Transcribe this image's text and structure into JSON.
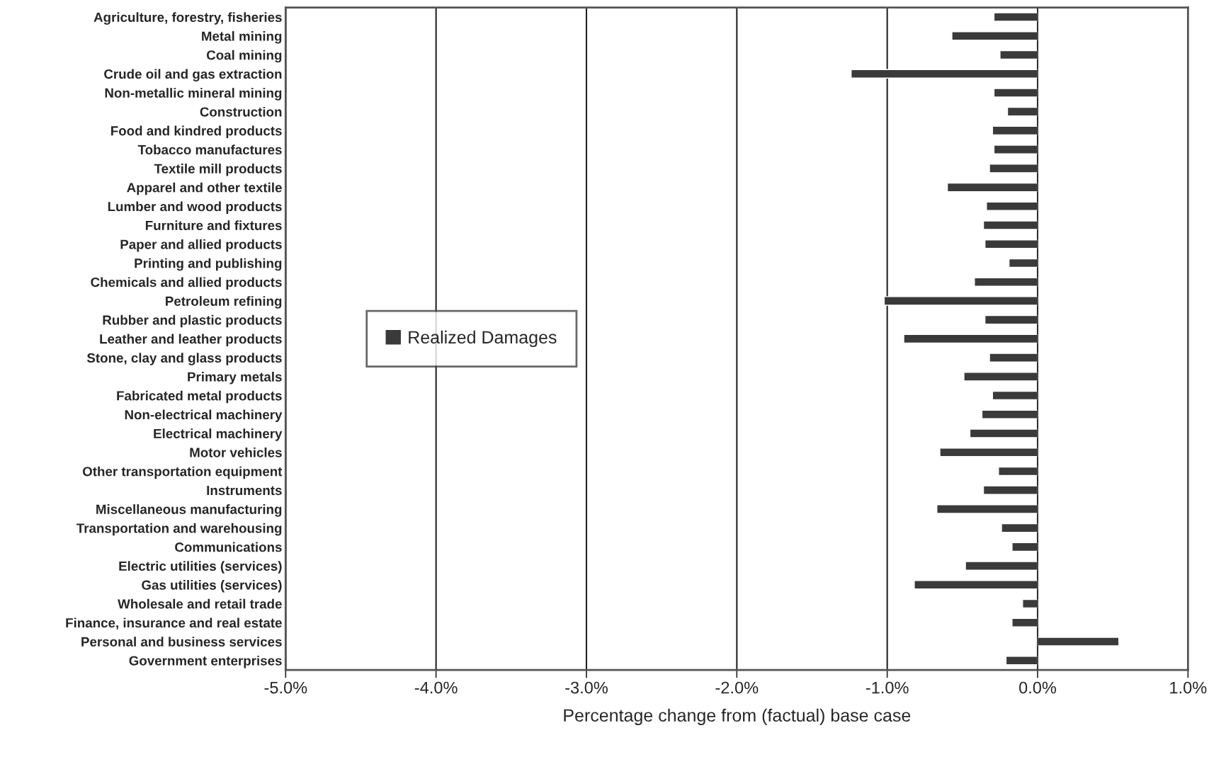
{
  "chart_data": {
    "type": "bar",
    "orientation": "horizontal",
    "xlabel": "Percentage change from (factual) base case",
    "categories": [
      "Agriculture, forestry, fisheries",
      "Metal mining",
      "Coal mining",
      "Crude oil and gas extraction",
      "Non-metallic mineral mining",
      "Construction",
      "Food and kindred products",
      "Tobacco manufactures",
      "Textile mill products",
      "Apparel and other textile",
      "Lumber and wood products",
      "Furniture and fixtures",
      "Paper and allied products",
      "Printing and publishing",
      "Chemicals and allied products",
      "Petroleum refining",
      "Rubber and plastic products",
      "Leather and leather products",
      "Stone, clay and glass products",
      "Primary metals",
      "Fabricated metal products",
      "Non-electrical machinery",
      "Electrical machinery",
      "Motor vehicles",
      "Other transportation equipment",
      "Instruments",
      "Miscellaneous manufacturing",
      "Transportation and warehousing",
      "Communications",
      "Electric utilities (services)",
      "Gas utilities (services)",
      "Wholesale and retail trade",
      "Finance, insurance and real estate",
      "Personal and business services",
      "Government enterprises"
    ],
    "series": [
      {
        "name": "Realized Damages",
        "color": "#3a3a3a",
        "values": [
          -0.29,
          -0.57,
          -0.25,
          -1.24,
          -0.29,
          -0.2,
          -0.3,
          -0.29,
          -0.32,
          -0.6,
          -0.34,
          -0.36,
          -0.35,
          -0.19,
          -0.42,
          -1.02,
          -0.35,
          -0.89,
          -0.32,
          -0.49,
          -0.3,
          -0.37,
          -0.45,
          -0.65,
          -0.26,
          -0.36,
          -0.67,
          -0.24,
          -0.17,
          -0.48,
          -0.82,
          -0.1,
          -0.17,
          0.54,
          -0.21
        ]
      }
    ],
    "xlim": [
      -5,
      1
    ],
    "xticks": [
      {
        "value": -5,
        "label": "-5.0%"
      },
      {
        "value": -4,
        "label": "-4.0%"
      },
      {
        "value": -3,
        "label": "-3.0%"
      },
      {
        "value": -2,
        "label": "-2.0%"
      },
      {
        "value": -1,
        "label": "-1.0%"
      },
      {
        "value": 0,
        "label": "0.0%"
      },
      {
        "value": 1,
        "label": "1.0%"
      }
    ],
    "grid": "x",
    "legend": "left"
  }
}
